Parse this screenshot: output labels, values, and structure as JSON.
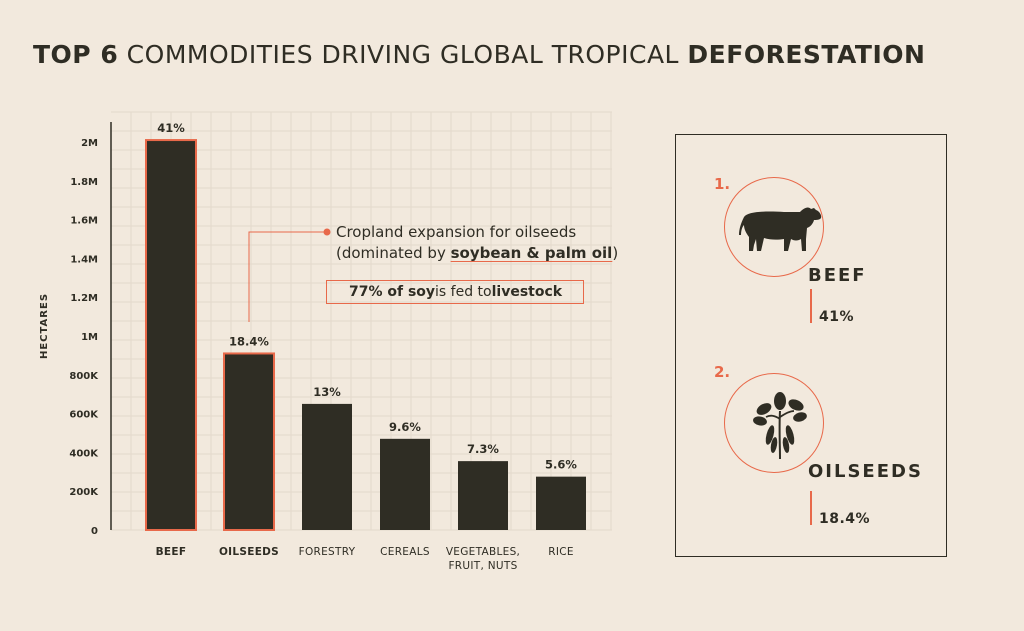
{
  "title": {
    "part1_bold": "TOP 6",
    "part2": " COMMODITIES DRIVING GLOBAL TROPICAL ",
    "part3_bold": "DEFORESTATION"
  },
  "chart_data": {
    "type": "bar",
    "ylabel": "HECTARES",
    "ylim": [
      0,
      2000000
    ],
    "yticks": [
      {
        "value": 0,
        "label": "0"
      },
      {
        "value": 200000,
        "label": "200K"
      },
      {
        "value": 400000,
        "label": "400K"
      },
      {
        "value": 600000,
        "label": "600K"
      },
      {
        "value": 800000,
        "label": "800K"
      },
      {
        "value": 1000000,
        "label": "1M"
      },
      {
        "value": 1200000,
        "label": "1.2M"
      },
      {
        "value": 1400000,
        "label": "1.4M"
      },
      {
        "value": 1600000,
        "label": "1.6M"
      },
      {
        "value": 1800000,
        "label": "1.8M"
      },
      {
        "value": 2000000,
        "label": "2M"
      }
    ],
    "categories": [
      {
        "line1": "BEEF",
        "line2": "",
        "bold": true
      },
      {
        "line1": "OILSEEDS",
        "line2": "",
        "bold": true
      },
      {
        "line1": "FORESTRY",
        "line2": "",
        "bold": false
      },
      {
        "line1": "CEREALS",
        "line2": "",
        "bold": false
      },
      {
        "line1": "VEGETABLES,",
        "line2": "FRUIT, NUTS",
        "bold": false
      },
      {
        "line1": "RICE",
        "line2": "",
        "bold": false
      }
    ],
    "values": [
      2010000,
      910000,
      650000,
      470000,
      355000,
      275000
    ],
    "data_labels": [
      "41%",
      "18.4%",
      "13%",
      "9.6%",
      "7.3%",
      "5.6%"
    ],
    "highlighted": [
      true,
      true,
      false,
      false,
      false,
      false
    ],
    "grid": true
  },
  "annotation": {
    "line1": "Cropland expansion for oilseeds",
    "line2_prefix": "(dominated by ",
    "line2_highlight": "soybean & palm oil",
    "line2_suffix": ")",
    "box_bold1": "77% of soy",
    "box_middle": " is fed to ",
    "box_bold2": "livestock"
  },
  "panel": {
    "items": [
      {
        "rank": "1.",
        "name": "BEEF",
        "value": "41%",
        "icon": "cow-icon"
      },
      {
        "rank": "2.",
        "name": "OILSEEDS",
        "value": "18.4%",
        "icon": "soybean-plant-icon"
      }
    ]
  },
  "colors": {
    "background": "#f2e9dd",
    "bar": "#2f2d24",
    "accent": "#e8694a",
    "grid": "#e3d9cc"
  }
}
